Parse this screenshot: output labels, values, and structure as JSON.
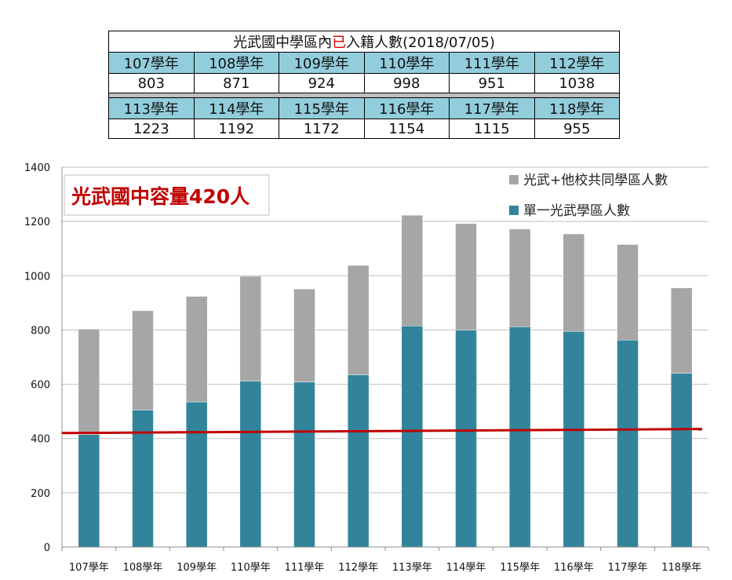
{
  "table": {
    "title_prefix": "光武國中學區內",
    "title_highlight": "已",
    "title_suffix": "入籍人數(2018/07/05)",
    "row1_headers": [
      "107學年",
      "108學年",
      "109學年",
      "110學年",
      "111學年",
      "112學年"
    ],
    "row1_values": [
      "803",
      "871",
      "924",
      "998",
      "951",
      "1038"
    ],
    "row2_headers": [
      "113學年",
      "114學年",
      "115學年",
      "116學年",
      "117學年",
      "118學年"
    ],
    "row2_values": [
      "1223",
      "1192",
      "1172",
      "1154",
      "1115",
      "955"
    ]
  },
  "colors": {
    "single_district": "#31849b",
    "shared_district": "#a6a6a6",
    "capacity_line": "#c00000",
    "table_header": "#92cddc"
  },
  "chart_data": {
    "type": "bar",
    "stacked": true,
    "categories": [
      "107學年",
      "108學年",
      "109學年",
      "110學年",
      "111學年",
      "112學年",
      "113學年",
      "114學年",
      "115學年",
      "116學年",
      "117學年",
      "118學年"
    ],
    "series": [
      {
        "name": "單一光武學區人數",
        "values": [
          415,
          505,
          535,
          612,
          608,
          635,
          815,
          800,
          812,
          795,
          763,
          640
        ]
      },
      {
        "name": "光武+他校共同學區人數",
        "values": [
          388,
          366,
          389,
          386,
          343,
          403,
          408,
          392,
          360,
          359,
          352,
          315
        ]
      }
    ],
    "capacity_line": {
      "label": "光武國中容量420人",
      "start": 420,
      "end": 435
    },
    "ylim": [
      0,
      1400
    ],
    "yticks": [
      0,
      200,
      400,
      600,
      800,
      1000,
      1200,
      1400
    ],
    "grid": true,
    "legend_position": "top-right"
  }
}
